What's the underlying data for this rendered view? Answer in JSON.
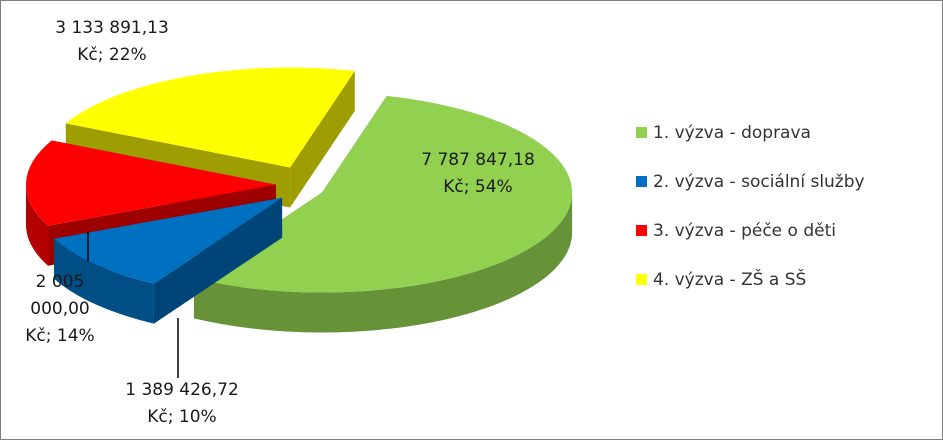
{
  "chart_data": {
    "type": "pie3d",
    "categories": [
      "1. výzva - doprava",
      "2. výzva - sociální služby",
      "3. výzva - péče o děti",
      "4. výzva - ZŠ a SŠ"
    ],
    "values": [
      7787847.18,
      1389426.72,
      2005000.0,
      3133891.13
    ],
    "value_labels": [
      "7 787 847,18 Kč; 54%",
      "1 389 426,72 Kč; 10%",
      "2 005 000,00 Kč; 14%",
      "3 133 891,13 Kč; 22%"
    ],
    "colors": [
      "#92d050",
      "#0070c0",
      "#ff0000",
      "#ffff00"
    ],
    "legend": "right"
  }
}
